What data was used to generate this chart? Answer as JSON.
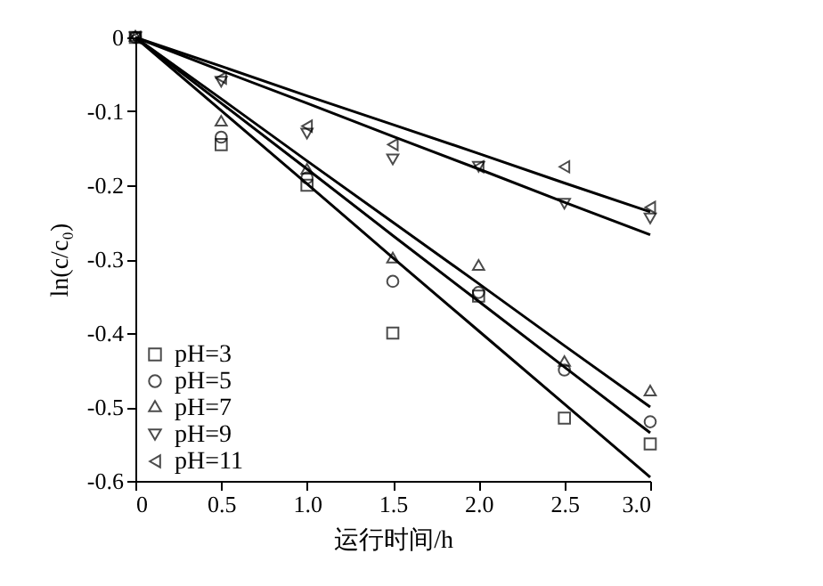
{
  "chart_data": {
    "type": "scatter",
    "xlabel": "运行时间/h",
    "ylabel": "ln(c/c₀)",
    "x": [
      0,
      0.5,
      1.0,
      1.5,
      2.0,
      2.5,
      3.0
    ],
    "series": [
      {
        "name": "pH=3",
        "color": "#000000",
        "marker": "square",
        "values": [
          0,
          -0.145,
          -0.2,
          -0.4,
          -0.35,
          -0.515,
          -0.55
        ]
      },
      {
        "name": "pH=5",
        "color": "#000000",
        "marker": "circle",
        "values": [
          0,
          -0.135,
          -0.19,
          -0.33,
          -0.345,
          -0.45,
          -0.52
        ]
      },
      {
        "name": "pH=7",
        "color": "#000000",
        "marker": "triangle",
        "values": [
          0,
          -0.115,
          -0.18,
          -0.3,
          -0.31,
          -0.44,
          -0.48
        ]
      },
      {
        "name": "pH=9",
        "color": "#000000",
        "marker": "triangle-down",
        "values": [
          0,
          -0.06,
          -0.13,
          -0.165,
          -0.175,
          -0.225,
          -0.245
        ]
      },
      {
        "name": "pH=11",
        "color": "#000000",
        "marker": "triangle-left",
        "values": [
          0,
          -0.055,
          -0.12,
          -0.145,
          -0.175,
          -0.175,
          -0.23
        ]
      },
      {
        "type": "line",
        "color": "#000000",
        "values": [
          0,
          -0.099,
          -0.198,
          -0.298,
          -0.397,
          -0.496,
          -0.595
        ]
      },
      {
        "type": "line",
        "color": "#000000",
        "values": [
          0,
          -0.089,
          -0.178,
          -0.268,
          -0.357,
          -0.446,
          -0.535
        ]
      },
      {
        "type": "line",
        "color": "#000000",
        "values": [
          0,
          -0.083,
          -0.167,
          -0.25,
          -0.333,
          -0.417,
          -0.5
        ]
      },
      {
        "type": "line",
        "color": "#000000",
        "values": [
          0,
          -0.045,
          -0.089,
          -0.134,
          -0.178,
          -0.223,
          -0.267
        ]
      },
      {
        "type": "line",
        "color": "#000000",
        "values": [
          0,
          -0.039,
          -0.079,
          -0.118,
          -0.157,
          -0.197,
          -0.236
        ]
      }
    ],
    "xlim": [
      0,
      3.0
    ],
    "xticks": [
      0,
      0.5,
      {
        "value": 1,
        "label": "1.0"
      },
      1.5,
      {
        "value": 2,
        "label": "2.0"
      },
      2.5,
      {
        "value": 3,
        "label": "3.0"
      }
    ],
    "ylim": [
      -0.6,
      0
    ],
    "yticks": [
      -0.6,
      -0.5,
      -0.4,
      -0.3,
      -0.2,
      -0.1,
      0
    ],
    "grid": false,
    "legend": "bottom left",
    "line_style": "solid"
  }
}
